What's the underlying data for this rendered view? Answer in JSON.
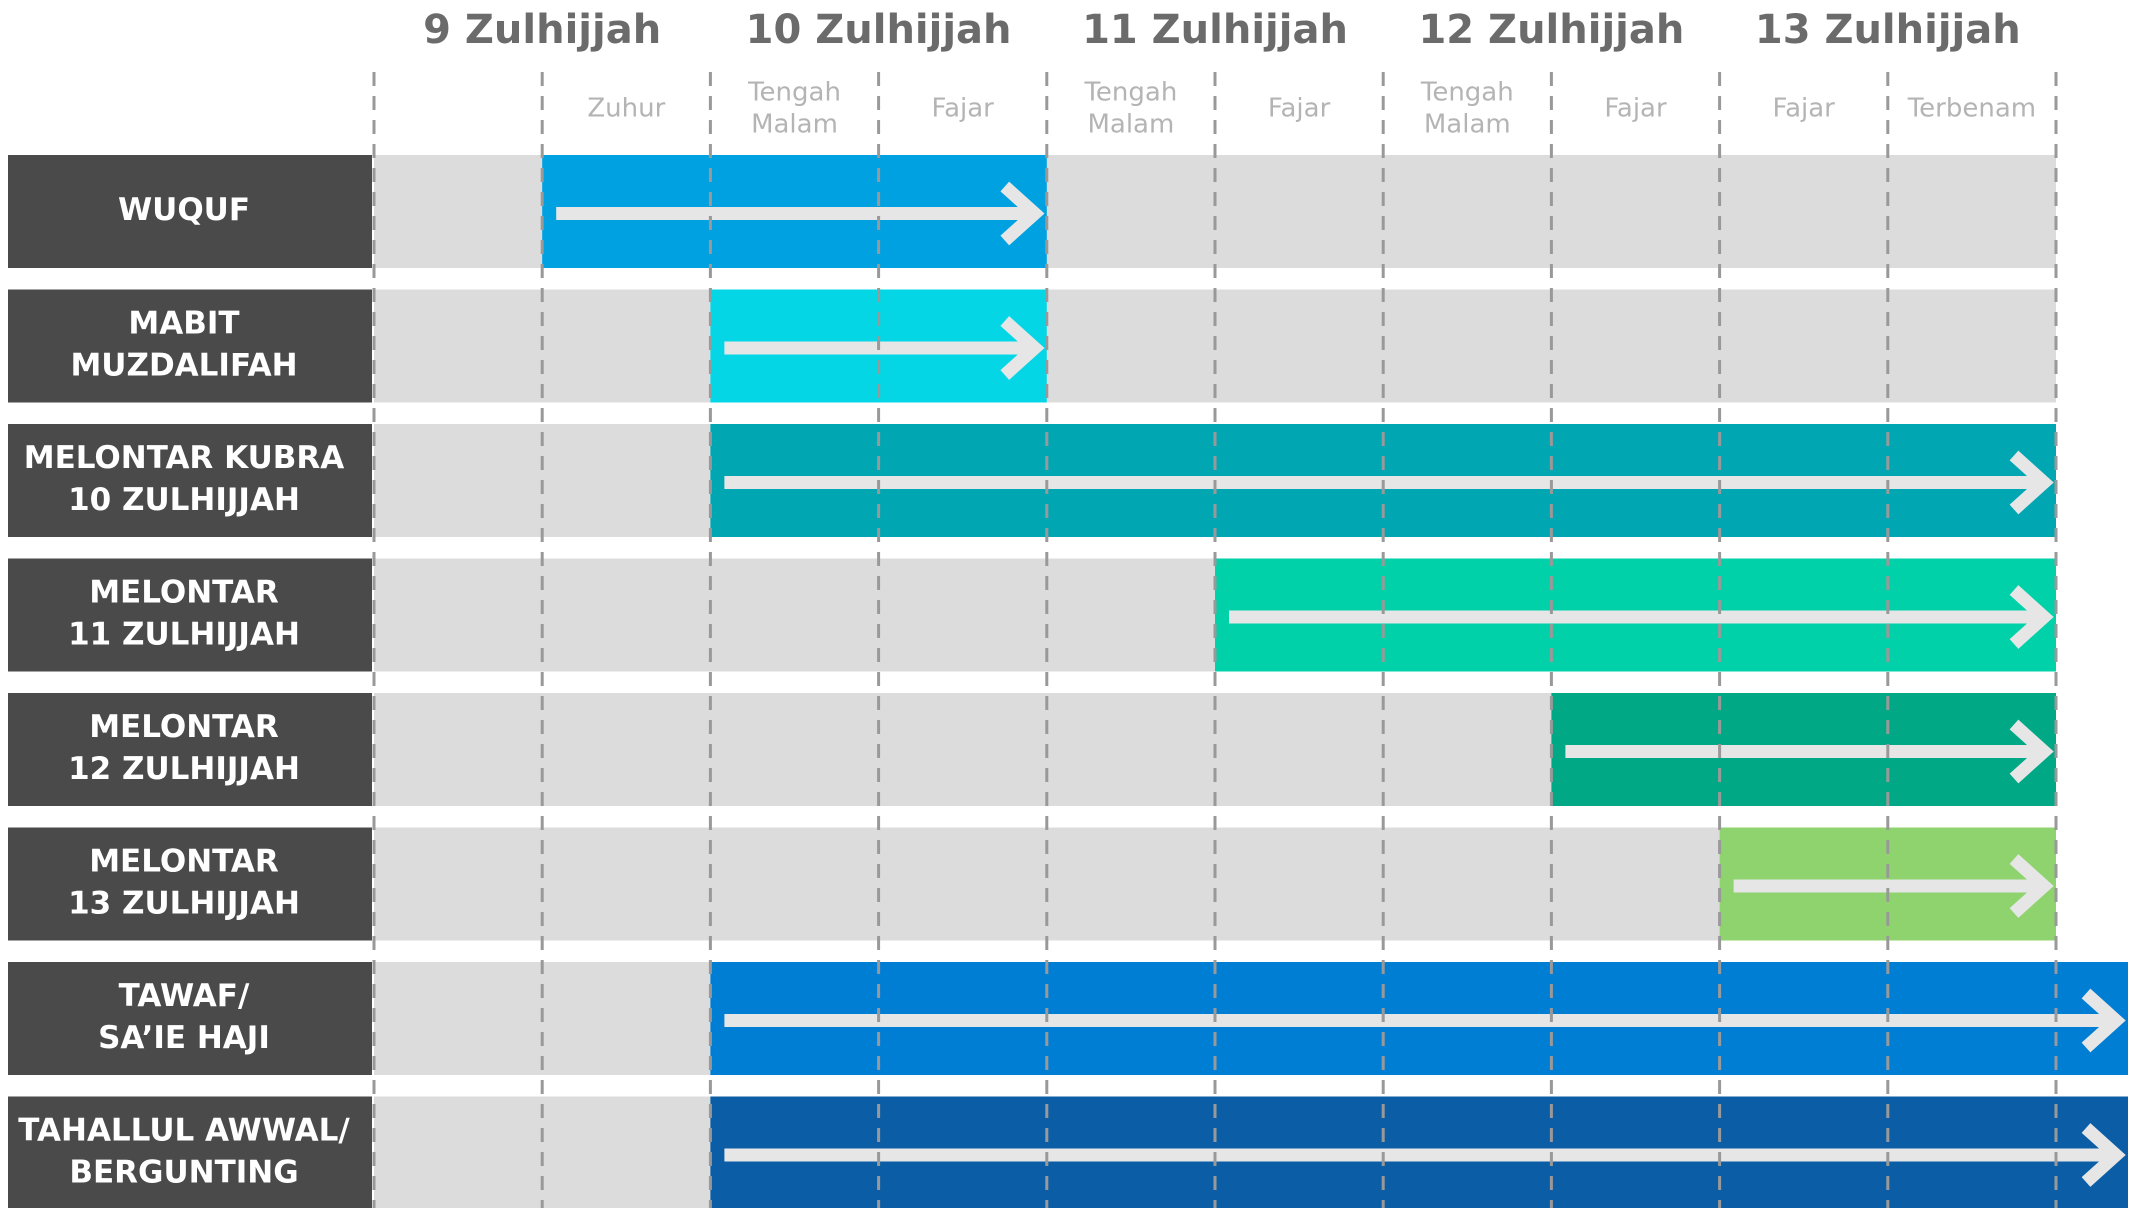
{
  "days": [
    "9 Zulhijjah",
    "10 Zulhijjah",
    "11 Zulhijjah",
    "12 Zulhijjah",
    "13 Zulhijjah"
  ],
  "slots": [
    [
      "Zuhur"
    ],
    [
      "Tengah",
      "Malam"
    ],
    [
      "Fajar"
    ],
    [
      "Tengah",
      "Malam"
    ],
    [
      "Fajar"
    ],
    [
      "Tengah",
      "Malam"
    ],
    [
      "Fajar"
    ],
    [
      "Fajar"
    ],
    [
      "Terbenam"
    ]
  ],
  "rows": [
    {
      "label": [
        "WUQUF"
      ]
    },
    {
      "label": [
        "MABIT",
        "MUZDALIFAH"
      ]
    },
    {
      "label": [
        "MELONTAR KUBRA",
        "10 ZULHIJJAH"
      ]
    },
    {
      "label": [
        "MELONTAR",
        "11 ZULHIJJAH"
      ]
    },
    {
      "label": [
        "MELONTAR",
        "12 ZULHIJJAH"
      ]
    },
    {
      "label": [
        "MELONTAR",
        "13 ZULHIJJAH"
      ]
    },
    {
      "label": [
        "TAWAF/",
        "SA’IE HAJI"
      ]
    },
    {
      "label": [
        "TAHALLUL AWWAL/",
        "BERGUNTING"
      ]
    }
  ]
}
